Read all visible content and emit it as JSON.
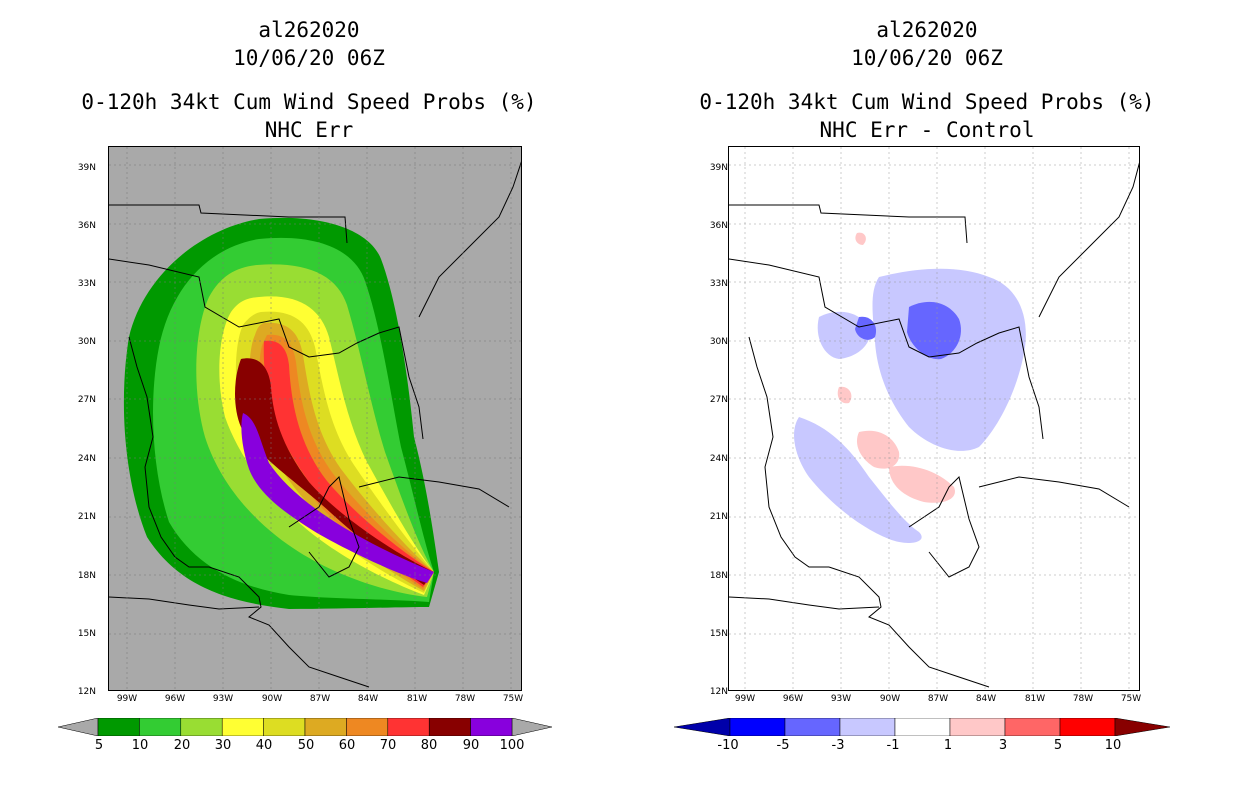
{
  "left_panel": {
    "storm_id": "al262020",
    "datetime": "10/06/20 06Z",
    "product": "0-120h 34kt Cum Wind Speed Probs (%)",
    "subtitle": "NHC Err",
    "background_color": "#a9a9a9",
    "colorbar": {
      "labels": [
        "5",
        "10",
        "20",
        "30",
        "40",
        "50",
        "60",
        "70",
        "80",
        "90",
        "100"
      ],
      "colors": [
        "#009900",
        "#33cc33",
        "#99dd33",
        "#ffff33",
        "#dddd22",
        "#ddaa22",
        "#ee8822",
        "#ff3333",
        "#880000",
        "#8800dd"
      ]
    }
  },
  "right_panel": {
    "storm_id": "al262020",
    "datetime": "10/06/20 06Z",
    "product": "0-120h 34kt Cum Wind Speed Probs (%)",
    "subtitle": "NHC Err - Control",
    "background_color": "#ffffff",
    "colorbar": {
      "labels": [
        "-10",
        "-5",
        "-3",
        "-1",
        "1",
        "3",
        "5",
        "10"
      ],
      "colors": [
        "#0000aa",
        "#0000ff",
        "#6666ff",
        "#c8c8ff",
        "#ffffff",
        "#ffc8c8",
        "#ff6666",
        "#ff0000",
        "#880000"
      ]
    }
  },
  "axes": {
    "lat_labels": [
      "39N",
      "36N",
      "33N",
      "30N",
      "27N",
      "24N",
      "21N",
      "18N",
      "15N",
      "12N"
    ],
    "lon_labels": [
      "99W",
      "96W",
      "93W",
      "90W",
      "87W",
      "84W",
      "81W",
      "78W",
      "75W"
    ]
  }
}
